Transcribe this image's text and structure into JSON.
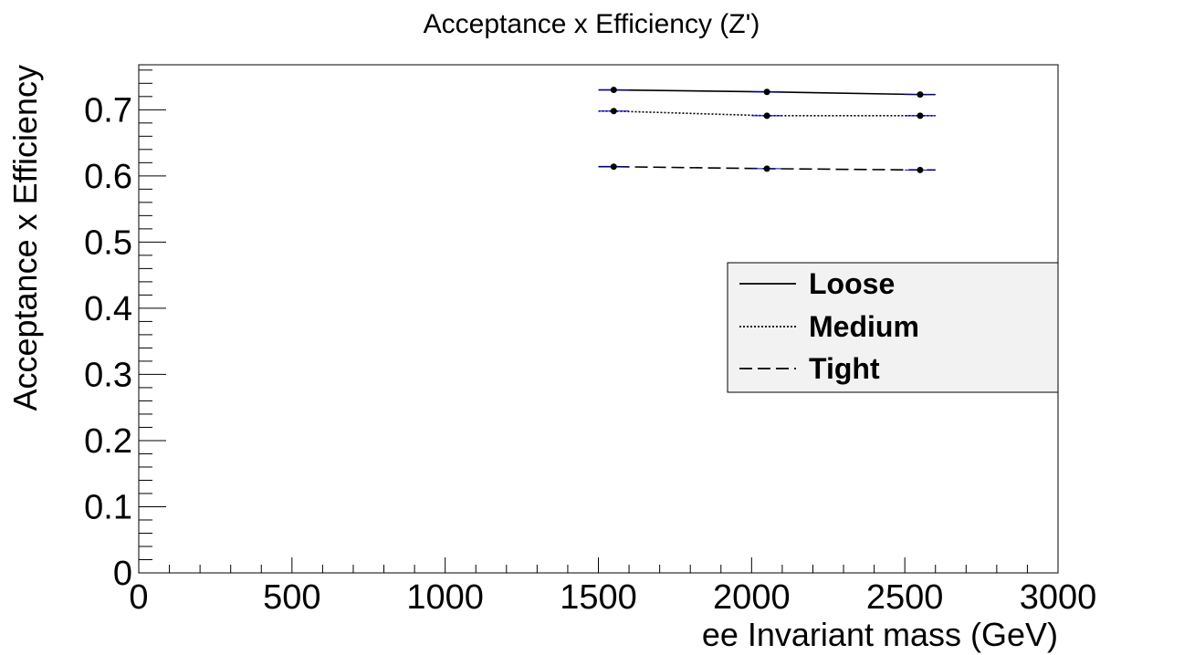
{
  "chart_data": {
    "type": "line",
    "title": "Acceptance x Efficiency (Z')",
    "xlabel": "ee Invariant mass (GeV)",
    "ylabel": "Acceptance x Efficiency",
    "xlim": [
      0,
      3000
    ],
    "ylim": [
      0,
      0.768
    ],
    "x_ticks": [
      0,
      500,
      1000,
      1500,
      2000,
      2500,
      3000
    ],
    "x_tick_labels": [
      "0",
      "500",
      "1000",
      "1500",
      "2000",
      "2500",
      "3000"
    ],
    "y_ticks": [
      0,
      0.1,
      0.2,
      0.3,
      0.4,
      0.5,
      0.6,
      0.7
    ],
    "y_tick_labels": [
      "0",
      "0.1",
      "0.2",
      "0.3",
      "0.4",
      "0.5",
      "0.6",
      "0.7"
    ],
    "grid": false,
    "legend_position": "right",
    "x": [
      1550,
      2050,
      2550
    ],
    "x_bin_half_width": 50,
    "series": [
      {
        "name": "Loose",
        "values": [
          0.73,
          0.727,
          0.723
        ],
        "line_style": "solid"
      },
      {
        "name": "Medium",
        "values": [
          0.698,
          0.691,
          0.691
        ],
        "line_style": "dotted"
      },
      {
        "name": "Tight",
        "values": [
          0.614,
          0.611,
          0.609
        ],
        "line_style": "dashed"
      }
    ],
    "colors": {
      "line": "#000000",
      "error_bar": "#0000cc",
      "legend_bg": "#f2f2f2"
    }
  }
}
